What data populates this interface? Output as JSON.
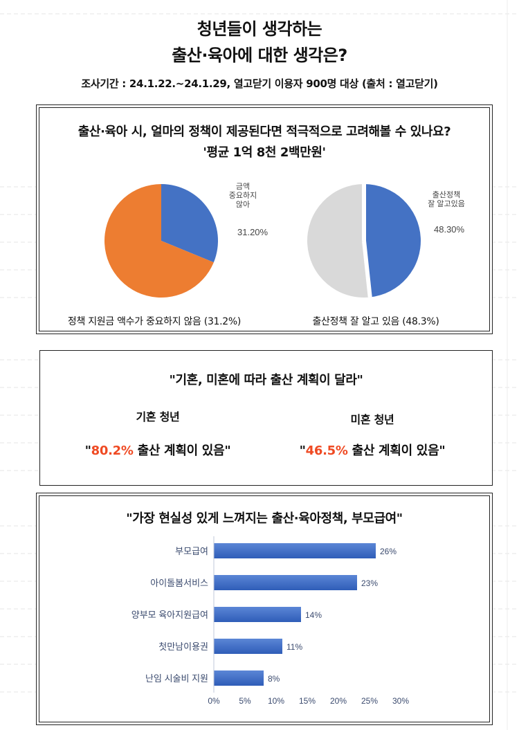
{
  "header": {
    "title_line1": "청년들이 생각하는",
    "title_line2": "출산·육아에 대한 생각은?",
    "survey": "조사기간 : 24.1.22.~24.1.29, 열고닫기 이용자 900명 대상 (출처 : 열고닫기)"
  },
  "section1": {
    "question": "출산·육아 시, 얼마의 정책이 제공된다면 적극적으로 고려해볼 수 있나요?",
    "answer": "'평균 1억 8천 2백만원'",
    "left_caption": "정책 지원금 액수가 중요하지 않음 (31.2%)",
    "right_caption": "출산정책 잘 알고 있음 (48.3%)"
  },
  "section2": {
    "title": "\"기혼, 미혼에 따라 출산 계획이 달라\"",
    "left": {
      "title": "기혼 청년",
      "open_quote": "\"",
      "percent": "80.2%",
      "text": " 출산 계획이 있음\""
    },
    "right": {
      "title": "미혼 청년",
      "open_quote": "\"",
      "percent": "46.5%",
      "text": " 출산 계획이 있음\""
    },
    "accent_color": "#ef4a23"
  },
  "section3": {
    "title": "\"가장 현실성 있게 느껴지는 출산·육아정책, 부모급여\""
  },
  "chart_data": [
    {
      "type": "pie",
      "title": "",
      "slices": [
        {
          "label": "금액\n중요하지\n않아",
          "value": 31.2,
          "display": "31.20%",
          "color": "#4472c4"
        },
        {
          "label": "",
          "value": 68.8,
          "color": "#ed7d31"
        }
      ]
    },
    {
      "type": "pie",
      "title": "",
      "slices": [
        {
          "label": "출산정책\n잘 알고있음",
          "value": 48.3,
          "display": "48.30%",
          "color": "#4472c4"
        },
        {
          "label": "",
          "value": 51.7,
          "color": "#d9d9d9"
        }
      ]
    },
    {
      "type": "bar",
      "orientation": "horizontal",
      "title": "",
      "categories": [
        "부모급여",
        "아이돌봄서비스",
        "양부모 육아지원급여",
        "첫만남이용권",
        "난임 시술비 지원"
      ],
      "values": [
        26,
        23,
        14,
        11,
        8
      ],
      "value_labels": [
        "26%",
        "23%",
        "14%",
        "11%",
        "8%"
      ],
      "xlim": [
        0,
        30
      ],
      "xticks": [
        "0%",
        "5%",
        "10%",
        "15%",
        "20%",
        "25%",
        "30%"
      ],
      "grid": false,
      "bar_color": "#4472c4"
    }
  ]
}
